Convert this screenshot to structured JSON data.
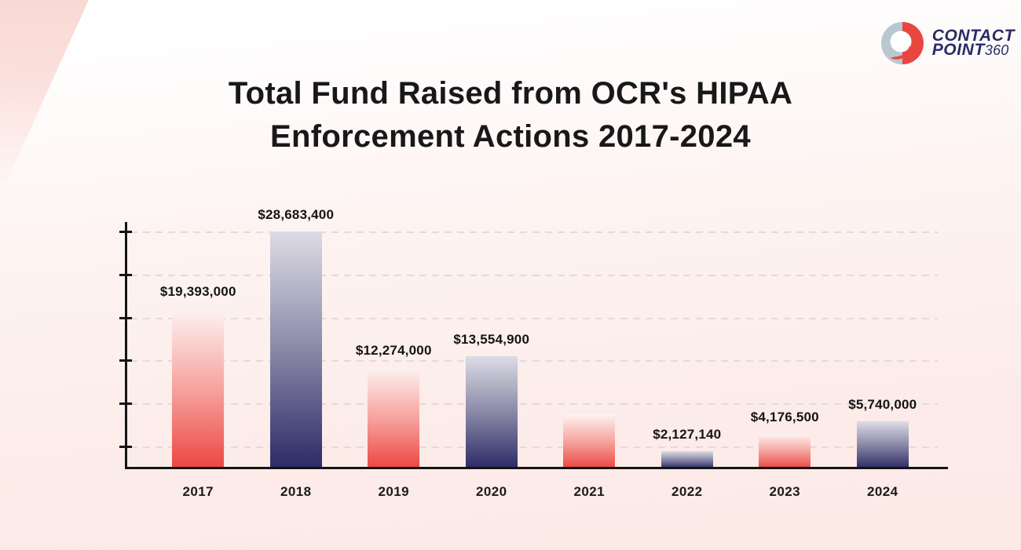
{
  "title": {
    "line1": "Total Fund Raised from OCR's HIPAA",
    "line2": "Enforcement Actions 2017-2024"
  },
  "logo": {
    "brand_line1": "CONTACT",
    "brand_word": "POINT",
    "brand_suffix": "360",
    "icon": "contactpoint360-swirl-icon",
    "colors": {
      "navy": "#272c67",
      "red": "#e8463f",
      "blue_gray": "#b9c7d1"
    }
  },
  "chart_data": {
    "type": "bar",
    "title": "Total Fund Raised from OCR's HIPAA Enforcement Actions 2017-2024",
    "categories": [
      "2017",
      "2018",
      "2019",
      "2020",
      "2021",
      "2022",
      "2023",
      "2024"
    ],
    "values": [
      19393000,
      28683400,
      12274000,
      13554900,
      6550000,
      2127140,
      4176500,
      5740000
    ],
    "value_labels": [
      "$19,393,000",
      "$28,683,400",
      "$12,274,000",
      "$13,554,900",
      "",
      "$2,127,140",
      "$4,176,500",
      "$5,740,000"
    ],
    "notes": "2021 bar is drawn without a printed value label; its value (~$6.5M) is estimated from bar height",
    "xlabel": "",
    "ylabel": "",
    "y_axis": {
      "tick_count": 6,
      "tick_labels_shown": false,
      "gridlines": "dashed"
    },
    "legend": "none",
    "bar_color_pattern": [
      "red-gradient",
      "navy-gradient"
    ],
    "colors": {
      "red_gradient_top": "#fdf3f2",
      "red_gradient_bottom": "#ec4643",
      "navy_gradient_top": "#dddce5",
      "navy_gradient_bottom": "#2d2a66",
      "axis": "#141414",
      "gridline": "#e6d9d8",
      "background": "#fdf1ef"
    }
  }
}
